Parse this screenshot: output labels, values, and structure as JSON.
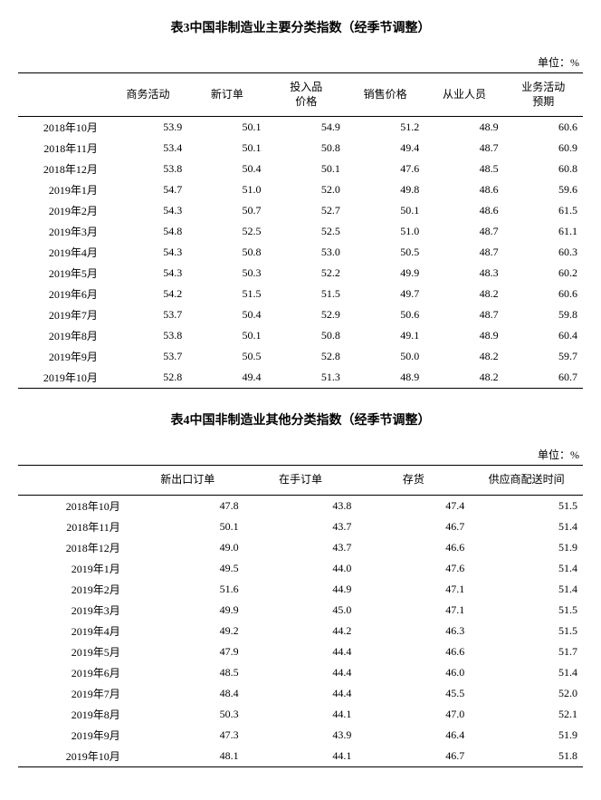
{
  "table3": {
    "title": "表3中国非制造业主要分类指数（经季节调整）",
    "unit": "单位：%",
    "headers": [
      "",
      "商务活动",
      "新订单",
      "投入品\n价格",
      "销售价格",
      "从业人员",
      "业务活动\n预期"
    ],
    "rows": [
      [
        "2018年10月",
        "53.9",
        "50.1",
        "54.9",
        "51.2",
        "48.9",
        "60.6"
      ],
      [
        "2018年11月",
        "53.4",
        "50.1",
        "50.8",
        "49.4",
        "48.7",
        "60.9"
      ],
      [
        "2018年12月",
        "53.8",
        "50.4",
        "50.1",
        "47.6",
        "48.5",
        "60.8"
      ],
      [
        "2019年1月",
        "54.7",
        "51.0",
        "52.0",
        "49.8",
        "48.6",
        "59.6"
      ],
      [
        "2019年2月",
        "54.3",
        "50.7",
        "52.7",
        "50.1",
        "48.6",
        "61.5"
      ],
      [
        "2019年3月",
        "54.8",
        "52.5",
        "52.5",
        "51.0",
        "48.7",
        "61.1"
      ],
      [
        "2019年4月",
        "54.3",
        "50.8",
        "53.0",
        "50.5",
        "48.7",
        "60.3"
      ],
      [
        "2019年5月",
        "54.3",
        "50.3",
        "52.2",
        "49.9",
        "48.3",
        "60.2"
      ],
      [
        "2019年6月",
        "54.2",
        "51.5",
        "51.5",
        "49.7",
        "48.2",
        "60.6"
      ],
      [
        "2019年7月",
        "53.7",
        "50.4",
        "52.9",
        "50.6",
        "48.7",
        "59.8"
      ],
      [
        "2019年8月",
        "53.8",
        "50.1",
        "50.8",
        "49.1",
        "48.9",
        "60.4"
      ],
      [
        "2019年9月",
        "53.7",
        "50.5",
        "52.8",
        "50.0",
        "48.2",
        "59.7"
      ],
      [
        "2019年10月",
        "52.8",
        "49.4",
        "51.3",
        "48.9",
        "48.2",
        "60.7"
      ]
    ]
  },
  "table4": {
    "title": "表4中国非制造业其他分类指数（经季节调整）",
    "unit": "单位：%",
    "headers": [
      "",
      "新出口订单",
      "在手订单",
      "存货",
      "供应商配送时间"
    ],
    "rows": [
      [
        "2018年10月",
        "47.8",
        "43.8",
        "47.4",
        "51.5"
      ],
      [
        "2018年11月",
        "50.1",
        "43.7",
        "46.7",
        "51.4"
      ],
      [
        "2018年12月",
        "49.0",
        "43.7",
        "46.6",
        "51.9"
      ],
      [
        "2019年1月",
        "49.5",
        "44.0",
        "47.6",
        "51.4"
      ],
      [
        "2019年2月",
        "51.6",
        "44.9",
        "47.1",
        "51.4"
      ],
      [
        "2019年3月",
        "49.9",
        "45.0",
        "47.1",
        "51.5"
      ],
      [
        "2019年4月",
        "49.2",
        "44.2",
        "46.3",
        "51.5"
      ],
      [
        "2019年5月",
        "47.9",
        "44.4",
        "46.6",
        "51.7"
      ],
      [
        "2019年6月",
        "48.5",
        "44.4",
        "46.0",
        "51.4"
      ],
      [
        "2019年7月",
        "48.4",
        "44.4",
        "45.5",
        "52.0"
      ],
      [
        "2019年8月",
        "50.3",
        "44.1",
        "47.0",
        "52.1"
      ],
      [
        "2019年9月",
        "47.3",
        "43.9",
        "46.4",
        "51.9"
      ],
      [
        "2019年10月",
        "48.1",
        "44.1",
        "46.7",
        "51.8"
      ]
    ]
  }
}
